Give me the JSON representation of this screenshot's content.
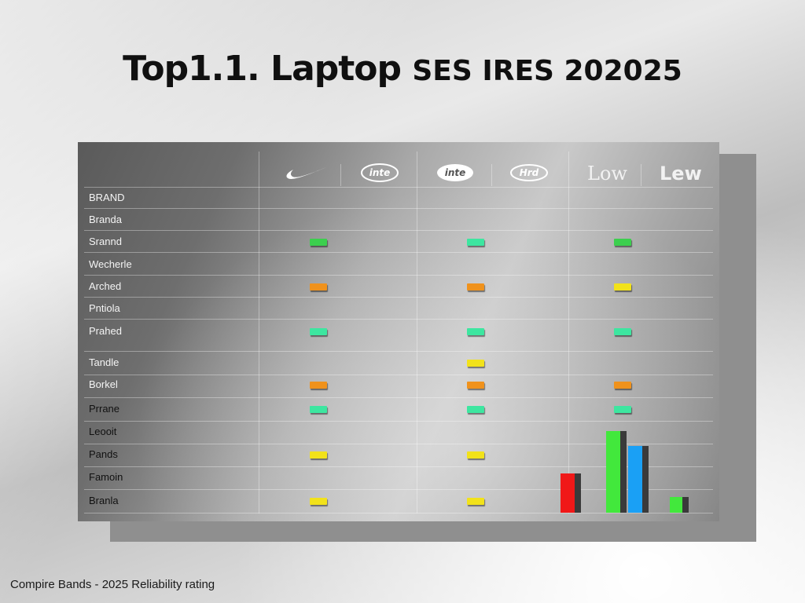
{
  "title": {
    "main": "Top1.1. Laptop",
    "sub": "SES IRES 202025"
  },
  "header": {
    "low_label": "Low",
    "lew_label": "Lew"
  },
  "rows": [
    {
      "label": "BRAND",
      "cells": [
        null,
        null,
        null
      ]
    },
    {
      "label": "Branda",
      "cells": [
        null,
        null,
        null
      ]
    },
    {
      "label": "Srannd",
      "cells": [
        "green",
        "teal",
        "green"
      ]
    },
    {
      "label": "Wecherle",
      "cells": [
        null,
        null,
        null
      ]
    },
    {
      "label": "Arched",
      "cells": [
        "orange",
        "orange",
        "yellow"
      ]
    },
    {
      "label": "Pntiola",
      "cells": [
        null,
        null,
        null
      ]
    },
    {
      "label": "Prahed",
      "cells": [
        "teal",
        "teal",
        "teal"
      ]
    },
    {
      "label": "Tandle",
      "cells": [
        null,
        "yellow",
        null
      ]
    },
    {
      "label": "Borkel",
      "cells": [
        "orange",
        "orange",
        "orange"
      ]
    },
    {
      "label": "Prrane",
      "cells": [
        "teal",
        "teal",
        "teal"
      ]
    },
    {
      "label": "Leooit",
      "cells": [
        null,
        null,
        null
      ]
    },
    {
      "label": "Pands",
      "cells": [
        "yellow",
        "yellow",
        null
      ]
    },
    {
      "label": "Famoin",
      "cells": [
        null,
        null,
        null
      ]
    },
    {
      "label": "Branla",
      "cells": [
        "yellow",
        "yellow",
        null
      ]
    }
  ],
  "colors": {
    "green": "#3ccf4e",
    "teal": "#3de6a0",
    "orange": "#f0921c",
    "yellow": "#f2e21a",
    "red": "#f01818",
    "bar_green": "#42e83c",
    "bar_blue": "#1aa0f5"
  },
  "mini_bars": [
    {
      "color": "red",
      "level": 0.48
    },
    {
      "color": "bar_green",
      "level": 1.0
    },
    {
      "color": "bar_blue",
      "level": 0.82
    },
    {
      "color": "bar_green",
      "level": 0.19
    }
  ],
  "caption": "Compire Bands - 2025 Reliability rating"
}
